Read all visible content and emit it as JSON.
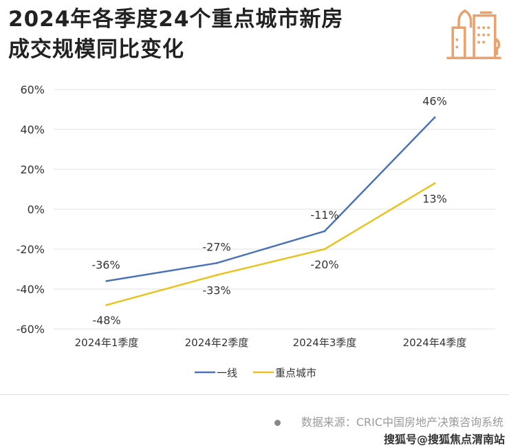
{
  "header": {
    "title_line1": "2024年各季度24个重点城市新房",
    "title_line2": "成交规模同比变化",
    "icon": "city-buildings-icon",
    "icon_color": "#e9a26c"
  },
  "chart_data": {
    "type": "line",
    "title": "2024年各季度24个重点城市新房成交规模同比变化",
    "categories": [
      "2024年1季度",
      "2024年2季度",
      "2024年3季度",
      "2024年4季度"
    ],
    "ylim": [
      -60,
      60
    ],
    "yticks": [
      60,
      40,
      20,
      0,
      -20,
      -40,
      -60
    ],
    "ytick_labels": [
      "60%",
      "40%",
      "20%",
      "0%",
      "-20%",
      "-40%",
      "-60%"
    ],
    "grid": true,
    "legend": "bottom",
    "series": [
      {
        "name": "一线",
        "values": [
          -36,
          -27,
          -11,
          46
        ],
        "labels": [
          "-36%",
          "-27%",
          "-11%",
          "46%"
        ],
        "color": "#4a72b8"
      },
      {
        "name": "重点城市",
        "values": [
          -48,
          -33,
          -20,
          13
        ],
        "labels": [
          "-48%",
          "-33%",
          "-20%",
          "13%"
        ],
        "color": "#e8c21e"
      }
    ]
  },
  "footer": {
    "source": "数据来源：CRIC中国房地产决策咨询系统",
    "watermark": "搜狐号@搜狐焦点渭南站"
  }
}
